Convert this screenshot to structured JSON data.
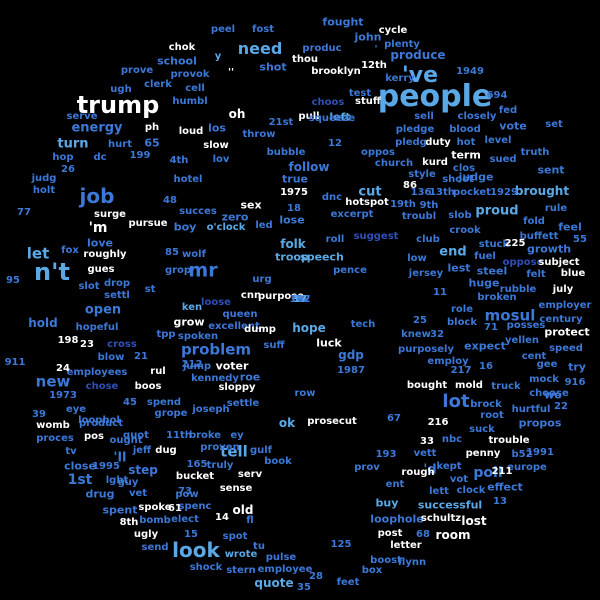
{
  "colors": {
    "background": "#000000",
    "palette": [
      "#ffffff",
      "#5aa9e6",
      "#3c78d8",
      "#2f4fb8",
      "#8ecae6"
    ]
  },
  "words": [
    {
      "text": "people",
      "c": "#5aa9e6"
    },
    {
      "text": "trump",
      "c": "#ffffff"
    },
    {
      "text": "n't",
      "c": "#5aa9e6"
    },
    {
      "text": "'ve",
      "c": "#5aa9e6"
    },
    {
      "text": "job",
      "c": "#3c78d8"
    },
    {
      "text": "look",
      "c": "#5aa9e6"
    },
    {
      "text": "mr",
      "c": "#3c78d8"
    },
    {
      "text": "lot",
      "c": "#3c78d8"
    },
    {
      "text": "need",
      "c": "#5aa9e6"
    },
    {
      "text": "problem",
      "c": "#3c78d8"
    },
    {
      "text": "new",
      "c": "#3c78d8"
    },
    {
      "text": "let",
      "c": "#5aa9e6"
    },
    {
      "text": "mosul",
      "c": "#3c78d8"
    },
    {
      "text": "tell",
      "c": "#5aa9e6"
    },
    {
      "text": "energy",
      "c": "#3c78d8"
    },
    {
      "text": "'m",
      "c": "#ffffff"
    },
    {
      "text": "turn",
      "c": "#5aa9e6"
    },
    {
      "text": "open",
      "c": "#3c78d8"
    },
    {
      "text": "end",
      "c": "#5aa9e6"
    },
    {
      "text": "cut",
      "c": "#5aa9e6"
    },
    {
      "text": "proud",
      "c": "#5aa9e6"
    },
    {
      "text": "hold",
      "c": "#3c78d8"
    },
    {
      "text": "hope",
      "c": "#5aa9e6"
    },
    {
      "text": "fought",
      "c": "#3c78d8"
    },
    {
      "text": "produce",
      "c": "#3c78d8"
    },
    {
      "text": "follow",
      "c": "#3c78d8"
    },
    {
      "text": "brought",
      "c": "#5aa9e6"
    },
    {
      "text": "judge",
      "c": "#3c78d8"
    },
    {
      "text": "lost",
      "c": "#ffffff"
    },
    {
      "text": "ok",
      "c": "#5aa9e6"
    },
    {
      "text": "drug",
      "c": "#3c78d8"
    },
    {
      "text": "spent",
      "c": "#3c78d8"
    },
    {
      "text": "step",
      "c": "#3c78d8"
    },
    {
      "text": "'ll",
      "c": "#3c78d8"
    },
    {
      "text": "buy",
      "c": "#5aa9e6"
    },
    {
      "text": "quote",
      "c": "#5aa9e6"
    },
    {
      "text": "grow",
      "c": "#ffffff"
    },
    {
      "text": "protect",
      "c": "#ffffff"
    },
    {
      "text": "old",
      "c": "#ffffff"
    },
    {
      "text": "folk",
      "c": "#5aa9e6"
    },
    {
      "text": "troop",
      "c": "#5aa9e6"
    },
    {
      "text": "steel",
      "c": "#3c78d8"
    },
    {
      "text": "lest",
      "c": "#3c78d8"
    },
    {
      "text": "'d",
      "c": "#3c78d8"
    },
    {
      "text": "sent",
      "c": "#3c78d8"
    },
    {
      "text": "effect",
      "c": "#3c78d8"
    },
    {
      "text": "close",
      "c": "#3c78d8"
    },
    {
      "text": "propos",
      "c": "#3c78d8"
    },
    {
      "text": "boy",
      "c": "#3c78d8"
    },
    {
      "text": "zero",
      "c": "#3c78d8"
    },
    {
      "text": "vote",
      "c": "#3c78d8"
    },
    {
      "text": "gdp",
      "c": "#3c78d8"
    },
    {
      "text": "room",
      "c": "#ffffff"
    },
    {
      "text": "feel",
      "c": "#3c78d8"
    },
    {
      "text": "growth",
      "c": "#3c78d8"
    },
    {
      "text": "love",
      "c": "#3c78d8"
    },
    {
      "text": "left",
      "c": "#5aa9e6"
    },
    {
      "text": "true",
      "c": "#3c78d8"
    },
    {
      "text": "lose",
      "c": "#3c78d8"
    },
    {
      "text": "voter",
      "c": "#ffffff"
    },
    {
      "text": "roe",
      "c": "#3c78d8"
    },
    {
      "text": "luck",
      "c": "#ffffff"
    },
    {
      "text": "try",
      "c": "#3c78d8"
    },
    {
      "text": "wo",
      "c": "#3c78d8"
    },
    {
      "text": "huge",
      "c": "#3c78d8"
    },
    {
      "text": "successful",
      "c": "#5aa9e6"
    },
    {
      "text": "loophole",
      "c": "#3c78d8"
    },
    {
      "text": "employees",
      "c": "#3c78d8"
    },
    {
      "text": "expect",
      "c": "#3c78d8"
    },
    {
      "text": "purpose",
      "c": "#ffffff"
    },
    {
      "text": "speech",
      "c": "#5aa9e6"
    },
    {
      "text": "low",
      "c": "#3c78d8"
    },
    {
      "text": "fuel",
      "c": "#3c78d8"
    },
    {
      "text": "kerry",
      "c": "#3c78d8"
    },
    {
      "text": "school",
      "c": "#3c78d8"
    },
    {
      "text": "shot",
      "c": "#3c78d8"
    },
    {
      "text": "john",
      "c": "#3c78d8"
    },
    {
      "text": "brooklyn",
      "c": "#ffffff"
    },
    {
      "text": "stuff",
      "c": "#ffffff"
    },
    {
      "text": "oh",
      "c": "#ffffff"
    },
    {
      "text": "pull",
      "c": "#ffffff"
    },
    {
      "text": "loud",
      "c": "#ffffff"
    },
    {
      "text": "slow",
      "c": "#ffffff"
    },
    {
      "text": "throw",
      "c": "#3c78d8"
    },
    {
      "text": "los",
      "c": "#3c78d8"
    },
    {
      "text": "blood",
      "c": "#3c78d8"
    },
    {
      "text": "closely",
      "c": "#3c78d8"
    },
    {
      "text": "sell",
      "c": "#3c78d8"
    },
    {
      "text": "fed",
      "c": "#3c78d8"
    },
    {
      "text": "level",
      "c": "#3c78d8"
    },
    {
      "text": "truth",
      "c": "#3c78d8"
    },
    {
      "text": "term",
      "c": "#ffffff"
    },
    {
      "text": "kurd",
      "c": "#ffffff"
    },
    {
      "text": "duty",
      "c": "#ffffff"
    },
    {
      "text": "hot",
      "c": "#3c78d8"
    },
    {
      "text": "sued",
      "c": "#3c78d8"
    },
    {
      "text": "set",
      "c": "#3c78d8"
    },
    {
      "text": "church",
      "c": "#3c78d8"
    },
    {
      "text": "style",
      "c": "#3c78d8"
    },
    {
      "text": "shoot",
      "c": "#3c78d8"
    },
    {
      "text": "pocket",
      "c": "#3c78d8"
    },
    {
      "text": "squeeze",
      "c": "#3c78d8"
    },
    {
      "text": "oppos",
      "c": "#3c78d8"
    },
    {
      "text": "bubble",
      "c": "#3c78d8"
    },
    {
      "text": "choos",
      "c": "#2f4fb8"
    },
    {
      "text": "test",
      "c": "#3c78d8"
    },
    {
      "text": "pledge",
      "c": "#3c78d8"
    },
    {
      "text": "pledg",
      "c": "#3c78d8"
    },
    {
      "text": "clos",
      "c": "#3c78d8"
    },
    {
      "text": "9th",
      "c": "#3c78d8"
    },
    {
      "text": "19th",
      "c": "#3c78d8"
    },
    {
      "text": "troubl",
      "c": "#3c78d8"
    },
    {
      "text": "slob",
      "c": "#3c78d8"
    },
    {
      "text": "fold",
      "c": "#3c78d8"
    },
    {
      "text": "rule",
      "c": "#3c78d8"
    },
    {
      "text": "crook",
      "c": "#3c78d8"
    },
    {
      "text": "buffett",
      "c": "#3c78d8"
    },
    {
      "text": "excerpt",
      "c": "#3c78d8"
    },
    {
      "text": "dnc",
      "c": "#3c78d8"
    },
    {
      "text": "hotspot",
      "c": "#ffffff"
    },
    {
      "text": "sex",
      "c": "#ffffff"
    },
    {
      "text": "succes",
      "c": "#3c78d8"
    },
    {
      "text": "o'clock",
      "c": "#5aa9e6"
    },
    {
      "text": "pursue",
      "c": "#ffffff"
    },
    {
      "text": "surge",
      "c": "#ffffff"
    },
    {
      "text": "roughly",
      "c": "#ffffff"
    },
    {
      "text": "fox",
      "c": "#3c78d8"
    },
    {
      "text": "gues",
      "c": "#ffffff"
    },
    {
      "text": "slot",
      "c": "#3c78d8"
    },
    {
      "text": "drop",
      "c": "#3c78d8"
    },
    {
      "text": "settl",
      "c": "#3c78d8"
    },
    {
      "text": "wolf",
      "c": "#3c78d8"
    },
    {
      "text": "grop",
      "c": "#3c78d8"
    },
    {
      "text": "urg",
      "c": "#3c78d8"
    },
    {
      "text": "roll",
      "c": "#3c78d8"
    },
    {
      "text": "suggest",
      "c": "#2f4fb8"
    },
    {
      "text": "club",
      "c": "#3c78d8"
    },
    {
      "text": "jersey",
      "c": "#3c78d8"
    },
    {
      "text": "pence",
      "c": "#3c78d8"
    },
    {
      "text": "stuck",
      "c": "#3c78d8"
    },
    {
      "text": "oppose",
      "c": "#2f4fb8"
    },
    {
      "text": "felt",
      "c": "#3c78d8"
    },
    {
      "text": "blue",
      "c": "#ffffff"
    },
    {
      "text": "subject",
      "c": "#ffffff"
    },
    {
      "text": "july",
      "c": "#ffffff"
    },
    {
      "text": "broken",
      "c": "#3c78d8"
    },
    {
      "text": "employer",
      "c": "#3c78d8"
    },
    {
      "text": "century",
      "c": "#3c78d8"
    },
    {
      "text": "role",
      "c": "#3c78d8"
    },
    {
      "text": "block",
      "c": "#3c78d8"
    },
    {
      "text": "posses",
      "c": "#3c78d8"
    },
    {
      "text": "speed",
      "c": "#3c78d8"
    },
    {
      "text": "gee",
      "c": "#3c78d8"
    },
    {
      "text": "cent",
      "c": "#3c78d8"
    },
    {
      "text": "mock",
      "c": "#3c78d8"
    },
    {
      "text": "truck",
      "c": "#3c78d8"
    },
    {
      "text": "bought",
      "c": "#ffffff"
    },
    {
      "text": "mold",
      "c": "#ffffff"
    },
    {
      "text": "brock",
      "c": "#3c78d8"
    },
    {
      "text": "choose",
      "c": "#3c78d8"
    },
    {
      "text": "root",
      "c": "#3c78d8"
    },
    {
      "text": "hurtful",
      "c": "#3c78d8"
    },
    {
      "text": "suck",
      "c": "#3c78d8"
    },
    {
      "text": "trouble",
      "c": "#ffffff"
    },
    {
      "text": "purposely",
      "c": "#3c78d8"
    },
    {
      "text": "employ",
      "c": "#3c78d8"
    },
    {
      "text": "knew",
      "c": "#3c78d8"
    },
    {
      "text": "nbc",
      "c": "#3c78d8"
    },
    {
      "text": "vett",
      "c": "#3c78d8"
    },
    {
      "text": "prov",
      "c": "#3c78d8"
    },
    {
      "text": "rough",
      "c": "#ffffff"
    },
    {
      "text": "kept",
      "c": "#3c78d8"
    },
    {
      "text": "vot",
      "c": "#3c78d8"
    },
    {
      "text": "clock",
      "c": "#3c78d8"
    },
    {
      "text": "lett",
      "c": "#3c78d8"
    },
    {
      "text": "ent",
      "c": "#3c78d8"
    },
    {
      "text": "penny",
      "c": "#ffffff"
    },
    {
      "text": "europe",
      "c": "#3c78d8"
    },
    {
      "text": "schultz",
      "c": "#ffffff"
    },
    {
      "text": "post",
      "c": "#ffffff"
    },
    {
      "text": "letter",
      "c": "#ffffff"
    },
    {
      "text": "boost",
      "c": "#3c78d8"
    },
    {
      "text": "flynn",
      "c": "#3c78d8"
    },
    {
      "text": "box",
      "c": "#3c78d8"
    },
    {
      "text": "feet",
      "c": "#3c78d8"
    },
    {
      "text": "employee",
      "c": "#3c78d8"
    },
    {
      "text": "pulse",
      "c": "#3c78d8"
    },
    {
      "text": "wrote",
      "c": "#5aa9e6"
    },
    {
      "text": "tu",
      "c": "#3c78d8"
    },
    {
      "text": "spot",
      "c": "#3c78d8"
    },
    {
      "text": "fl",
      "c": "#3c78d8"
    },
    {
      "text": "shock",
      "c": "#3c78d8"
    },
    {
      "text": "stern",
      "c": "#3c78d8"
    },
    {
      "text": "elect",
      "c": "#3c78d8"
    },
    {
      "text": "bomb",
      "c": "#3c78d8"
    },
    {
      "text": "spenc",
      "c": "#3c78d8"
    },
    {
      "text": "8th",
      "c": "#ffffff"
    },
    {
      "text": "ugly",
      "c": "#ffffff"
    },
    {
      "text": "send",
      "c": "#3c78d8"
    },
    {
      "text": "spoke",
      "c": "#ffffff"
    },
    {
      "text": "vet",
      "c": "#3c78d8"
    },
    {
      "text": "pow",
      "c": "#3c78d8"
    },
    {
      "text": "guy",
      "c": "#3c78d8"
    },
    {
      "text": "lgbt",
      "c": "#3c78d8"
    },
    {
      "text": "bucket",
      "c": "#ffffff"
    },
    {
      "text": "sense",
      "c": "#ffffff"
    },
    {
      "text": "serv",
      "c": "#ffffff"
    },
    {
      "text": "truly",
      "c": "#3c78d8"
    },
    {
      "text": "book",
      "c": "#3c78d8"
    },
    {
      "text": "gulf",
      "c": "#3c78d8"
    },
    {
      "text": "proven",
      "c": "#3c78d8"
    },
    {
      "text": "jeff",
      "c": "#3c78d8"
    },
    {
      "text": "dug",
      "c": "#ffffff"
    },
    {
      "text": "quot",
      "c": "#3c78d8"
    },
    {
      "text": "11th",
      "c": "#3c78d8"
    },
    {
      "text": "broke",
      "c": "#3c78d8"
    },
    {
      "text": "ey",
      "c": "#3c78d8"
    },
    {
      "text": "ought",
      "c": "#3c78d8"
    },
    {
      "text": "tv",
      "c": "#3c78d8"
    },
    {
      "text": "product",
      "c": "#3c78d8"
    },
    {
      "text": "pos",
      "c": "#ffffff"
    },
    {
      "text": "proces",
      "c": "#3c78d8"
    },
    {
      "text": "womb",
      "c": "#ffffff"
    },
    {
      "text": "loophol",
      "c": "#3c78d8"
    },
    {
      "text": "eye",
      "c": "#3c78d8"
    },
    {
      "text": "spend",
      "c": "#3c78d8"
    },
    {
      "text": "grope",
      "c": "#3c78d8"
    },
    {
      "text": "joseph",
      "c": "#3c78d8"
    },
    {
      "text": "settle",
      "c": "#3c78d8"
    },
    {
      "text": "prosecut",
      "c": "#ffffff"
    },
    {
      "text": "row",
      "c": "#3c78d8"
    },
    {
      "text": "chose",
      "c": "#2f4fb8"
    },
    {
      "text": "boos",
      "c": "#ffffff"
    },
    {
      "text": "rul",
      "c": "#ffffff"
    },
    {
      "text": "kennedy",
      "c": "#3c78d8"
    },
    {
      "text": "sloppy",
      "c": "#ffffff"
    },
    {
      "text": "jump",
      "c": "#3c78d8"
    },
    {
      "text": "blow",
      "c": "#3c78d8"
    },
    {
      "text": "cross",
      "c": "#2f4fb8"
    },
    {
      "text": "hopeful",
      "c": "#3c78d8"
    },
    {
      "text": "tpp",
      "c": "#3c78d8"
    },
    {
      "text": "spoken",
      "c": "#3c78d8"
    },
    {
      "text": "excellent",
      "c": "#3c78d8"
    },
    {
      "text": "dump",
      "c": "#ffffff"
    },
    {
      "text": "suff",
      "c": "#3c78d8"
    },
    {
      "text": "tech",
      "c": "#3c78d8"
    },
    {
      "text": "ken",
      "c": "#5aa9e6"
    },
    {
      "text": "loose",
      "c": "#2f4fb8"
    },
    {
      "text": "queen",
      "c": "#3c78d8"
    },
    {
      "text": "cnn",
      "c": "#ffffff"
    },
    {
      "text": "peel",
      "c": "#3c78d8"
    },
    {
      "text": "fost",
      "c": "#3c78d8"
    },
    {
      "text": "y",
      "c": "#5aa9e6"
    },
    {
      "text": "chok",
      "c": "#ffffff"
    },
    {
      "text": "produc",
      "c": "#3c78d8"
    },
    {
      "text": "thou",
      "c": "#ffffff"
    },
    {
      "text": "provok",
      "c": "#3c78d8"
    },
    {
      "text": "clerk",
      "c": "#3c78d8"
    },
    {
      "text": "prove",
      "c": "#3c78d8"
    },
    {
      "text": "cell",
      "c": "#3c78d8"
    },
    {
      "text": "humbl",
      "c": "#3c78d8"
    },
    {
      "text": "ugh",
      "c": "#3c78d8"
    },
    {
      "text": "cycle",
      "c": "#ffffff"
    },
    {
      "text": "plenty",
      "c": "#3c78d8"
    },
    {
      "text": "serve",
      "c": "#3c78d8"
    },
    {
      "text": "ph",
      "c": "#ffffff"
    },
    {
      "text": "hurt",
      "c": "#3c78d8"
    },
    {
      "text": "4th",
      "c": "#3c78d8"
    },
    {
      "text": "lov",
      "c": "#3c78d8"
    },
    {
      "text": "21st",
      "c": "#3c78d8"
    },
    {
      "text": "hop",
      "c": "#3c78d8"
    },
    {
      "text": "dc",
      "c": "#3c78d8"
    },
    {
      "text": "judg",
      "c": "#3c78d8"
    },
    {
      "text": "holt",
      "c": "#3c78d8"
    },
    {
      "text": "hotel",
      "c": "#3c78d8"
    },
    {
      "text": "led",
      "c": "#3c78d8"
    },
    {
      "text": "yellen",
      "c": "#3c78d8"
    },
    {
      "text": "rubble",
      "c": "#3c78d8"
    },
    {
      "text": "poll",
      "c": "#3c78d8"
    },
    {
      "text": "1st",
      "c": "#3c78d8"
    },
    {
      "text": "12th",
      "c": "#ffffff"
    },
    {
      "text": "'",
      "c": "#3c78d8"
    },
    {
      "text": "''",
      "c": "#ffffff"
    },
    {
      "text": "1949",
      "c": "#3c78d8"
    },
    {
      "text": "694",
      "c": "#3c78d8"
    },
    {
      "text": "199",
      "c": "#3c78d8"
    },
    {
      "text": "26",
      "c": "#3c78d8"
    },
    {
      "text": "12",
      "c": "#3c78d8"
    },
    {
      "text": "86",
      "c": "#ffffff"
    },
    {
      "text": "1975",
      "c": "#ffffff"
    },
    {
      "text": "18",
      "c": "#3c78d8"
    },
    {
      "text": "48",
      "c": "#3c78d8"
    },
    {
      "text": "136",
      "c": "#3c78d8"
    },
    {
      "text": "13th",
      "c": "#3c78d8"
    },
    {
      "text": "1929",
      "c": "#3c78d8"
    },
    {
      "text": "77",
      "c": "#3c78d8"
    },
    {
      "text": "225",
      "c": "#ffffff"
    },
    {
      "text": "55",
      "c": "#3c78d8"
    },
    {
      "text": "85",
      "c": "#3c78d8"
    },
    {
      "text": "95",
      "c": "#3c78d8"
    },
    {
      "text": "st",
      "c": "#3c78d8"
    },
    {
      "text": "11",
      "c": "#3c78d8"
    },
    {
      "text": "916",
      "c": "#3c78d8"
    },
    {
      "text": "25",
      "c": "#3c78d8"
    },
    {
      "text": "32",
      "c": "#3c78d8"
    },
    {
      "text": "71",
      "c": "#3c78d8"
    },
    {
      "text": "198",
      "c": "#ffffff"
    },
    {
      "text": "23",
      "c": "#ffffff"
    },
    {
      "text": "21",
      "c": "#3c78d8"
    },
    {
      "text": "911",
      "c": "#3c78d8"
    },
    {
      "text": "24",
      "c": "#ffffff"
    },
    {
      "text": "212",
      "c": "#3c78d8"
    },
    {
      "text": "1987",
      "c": "#3c78d8"
    },
    {
      "text": "217",
      "c": "#3c78d8"
    },
    {
      "text": "16",
      "c": "#3c78d8"
    },
    {
      "text": "1973",
      "c": "#3c78d8"
    },
    {
      "text": "45",
      "c": "#3c78d8"
    },
    {
      "text": "22",
      "c": "#3c78d8"
    },
    {
      "text": "39",
      "c": "#3c78d8"
    },
    {
      "text": "67",
      "c": "#3c78d8"
    },
    {
      "text": "216",
      "c": "#ffffff"
    },
    {
      "text": "33",
      "c": "#ffffff"
    },
    {
      "text": "193",
      "c": "#3c78d8"
    },
    {
      "text": "b52",
      "c": "#3c78d8"
    },
    {
      "text": "1991",
      "c": "#3c78d8"
    },
    {
      "text": "211",
      "c": "#ffffff"
    },
    {
      "text": "1995",
      "c": "#3c78d8"
    },
    {
      "text": "165",
      "c": "#3c78d8"
    },
    {
      "text": "13",
      "c": "#3c78d8"
    },
    {
      "text": "73",
      "c": "#3c78d8"
    },
    {
      "text": "61",
      "c": "#ffffff"
    },
    {
      "text": "14",
      "c": "#ffffff"
    },
    {
      "text": "15",
      "c": "#3c78d8"
    },
    {
      "text": "125",
      "c": "#3c78d8"
    },
    {
      "text": "68",
      "c": "#3c78d8"
    },
    {
      "text": "28",
      "c": "#3c78d8"
    },
    {
      "text": "35",
      "c": "#3c78d8"
    },
    {
      "text": "65",
      "c": "#3c78d8"
    },
    {
      "text": "197",
      "c": "#3c78d8"
    },
    {
      "text": "112",
      "c": "#3c78d8"
    },
    {
      "text": "59",
      "c": "#3c78d8"
    },
    {
      "text": "17",
      "c": "#5aa9e6"
    }
  ]
}
